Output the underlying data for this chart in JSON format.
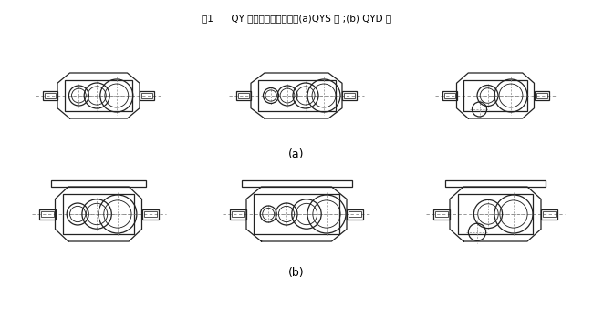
{
  "title": "",
  "caption": "图1      QY 型减速器结构简图：(a)QYS 型 ;(b) QYD 型",
  "label_a": "(a)",
  "label_b": "(b)",
  "bg_color": "#ffffff",
  "line_color": "#222222",
  "dashed_color": "#888888"
}
